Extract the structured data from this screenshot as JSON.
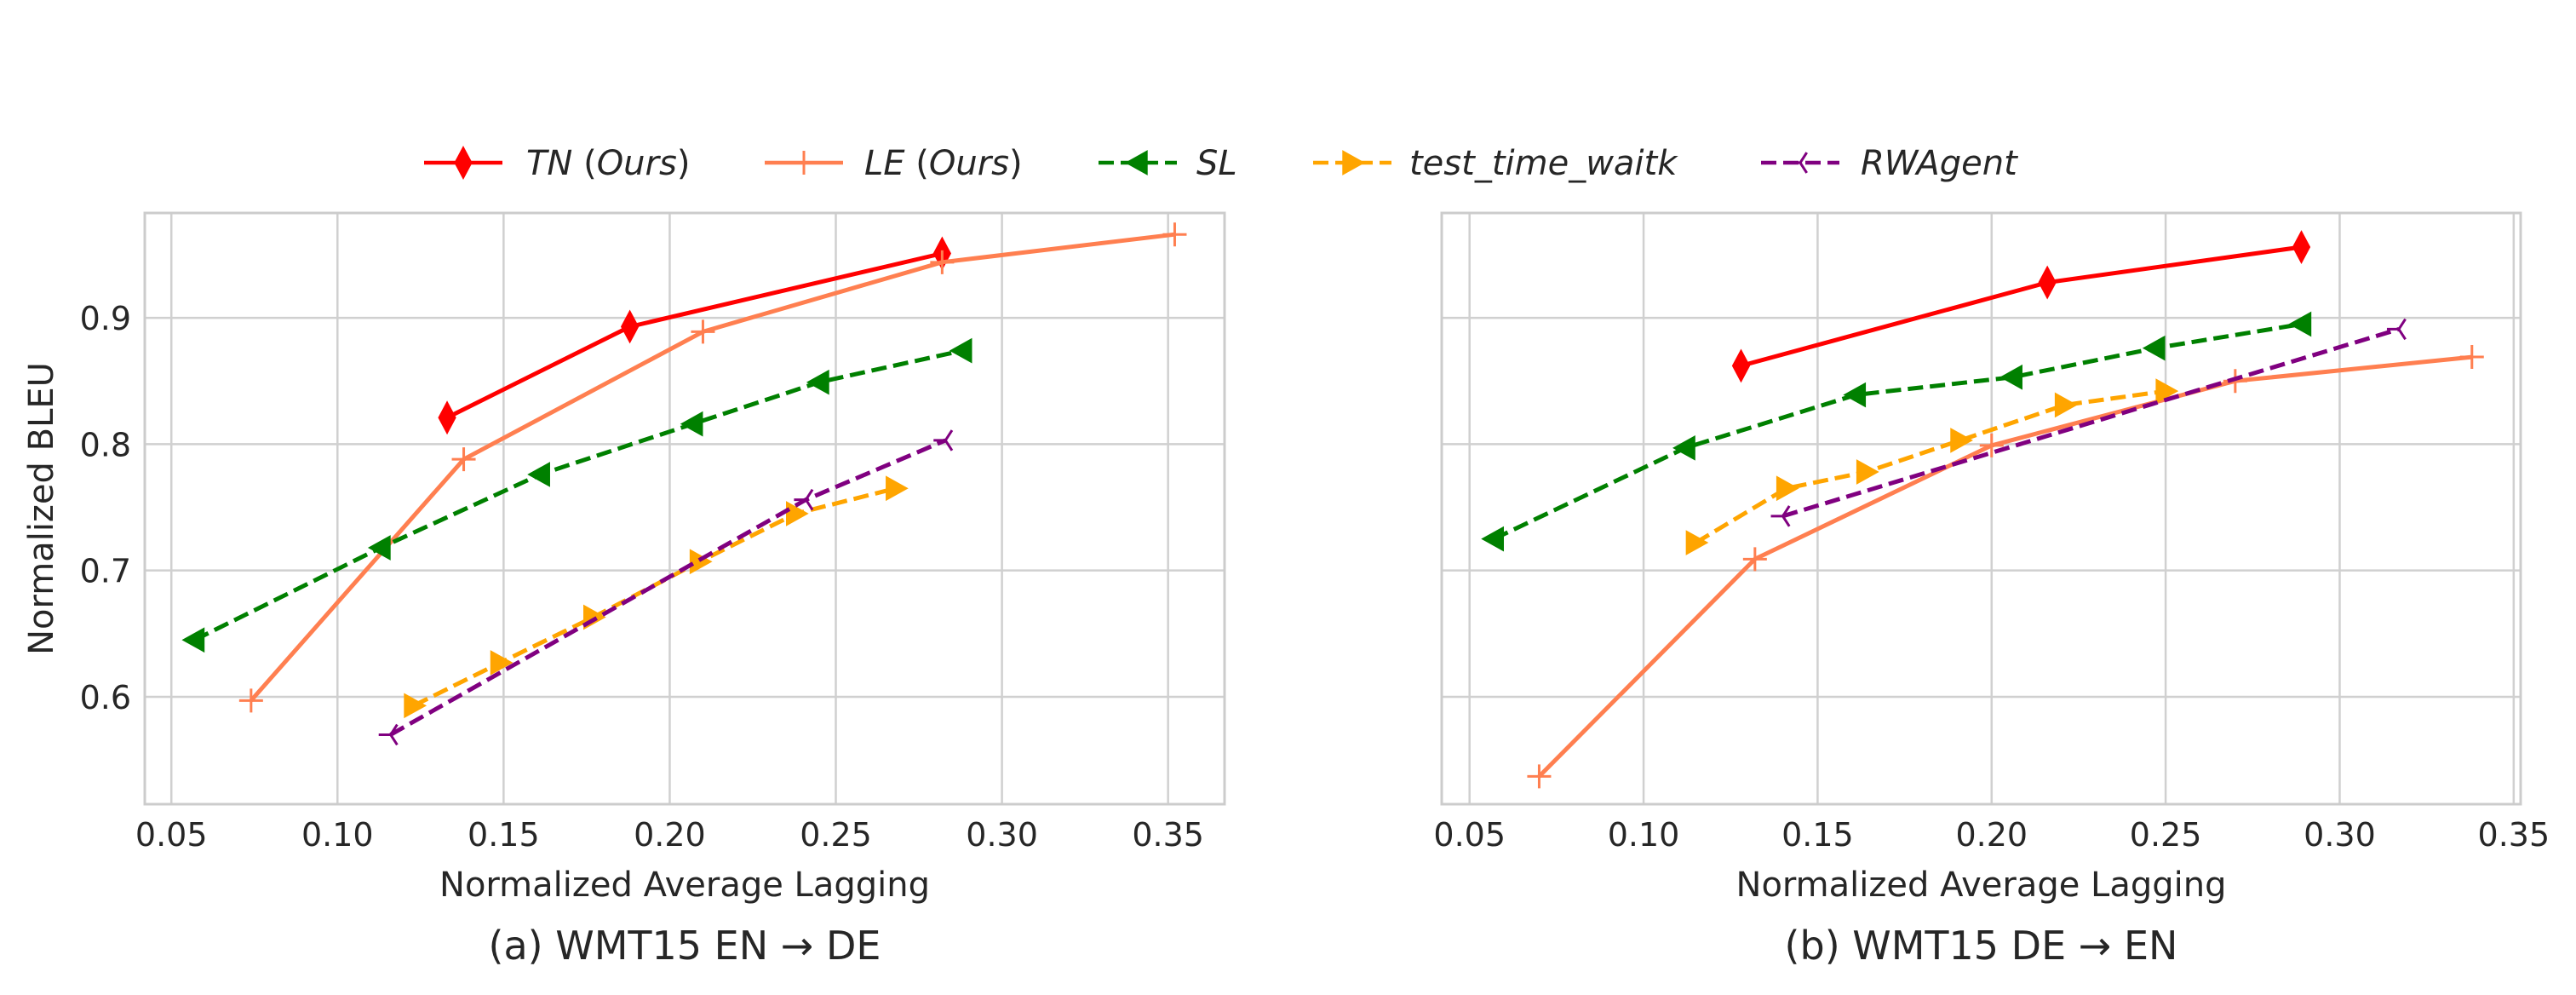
{
  "chart_data": {
    "type": "line",
    "legend": {
      "placement": "top-center",
      "entries": [
        {
          "key": "TN",
          "label": "TN",
          "suffix": "Ours"
        },
        {
          "key": "LE",
          "label": "LE",
          "suffix": "Ours"
        },
        {
          "key": "SL",
          "label": "SL",
          "suffix": ""
        },
        {
          "key": "test_time_waitk",
          "label": "test_time_waitk",
          "suffix": ""
        },
        {
          "key": "RWAgent",
          "label": "RWAgent",
          "suffix": ""
        }
      ]
    },
    "series_style": {
      "TN": {
        "color": "#ff0000",
        "dash": "solid",
        "marker": "diamond"
      },
      "LE": {
        "color": "#ff7f50",
        "dash": "solid",
        "marker": "plus"
      },
      "SL": {
        "color": "#008000",
        "dash": "dashed",
        "marker": "triangle-left"
      },
      "test_time_waitk": {
        "color": "#ffa500",
        "dash": "dashed",
        "marker": "triangle-right"
      },
      "RWAgent": {
        "color": "#800080",
        "dash": "dashed",
        "marker": "tri-left"
      }
    },
    "charts": [
      {
        "id": "a",
        "caption": "(a) WMT15 EN → DE",
        "xlabel": "Normalized Average Lagging",
        "ylabel": "Normalized BLEU",
        "xlim": [
          0.042,
          0.367
        ],
        "ylim": [
          0.515,
          0.983
        ],
        "xticks": [
          0.05,
          0.1,
          0.15,
          0.2,
          0.25,
          0.3,
          0.35
        ],
        "xtick_labels": [
          "0.05",
          "0.10",
          "0.15",
          "0.20",
          "0.25",
          "0.30",
          "0.35"
        ],
        "yticks": [
          0.6,
          0.7,
          0.8,
          0.9
        ],
        "ytick_labels": [
          "0.6",
          "0.7",
          "0.8",
          "0.9"
        ],
        "show_yticklabels": true,
        "grid": true,
        "series": [
          {
            "key": "TN",
            "name": "TN (Ours)",
            "x": [
              0.133,
              0.188,
              0.282
            ],
            "y": [
              0.821,
              0.893,
              0.951
            ]
          },
          {
            "key": "LE",
            "name": "LE (Ours)",
            "x": [
              0.074,
              0.138,
              0.21,
              0.282,
              0.352
            ],
            "y": [
              0.597,
              0.788,
              0.889,
              0.944,
              0.966
            ]
          },
          {
            "key": "SL",
            "name": "SL",
            "x": [
              0.057,
              0.113,
              0.161,
              0.207,
              0.245,
              0.288
            ],
            "y": [
              0.645,
              0.718,
              0.776,
              0.816,
              0.849,
              0.874
            ]
          },
          {
            "key": "test_time_waitk",
            "name": "test_time_waitk",
            "x": [
              0.123,
              0.149,
              0.177,
              0.209,
              0.238,
              0.268
            ],
            "y": [
              0.593,
              0.627,
              0.663,
              0.707,
              0.745,
              0.765
            ]
          },
          {
            "key": "RWAgent",
            "name": "RWAgent",
            "x": [
              0.116,
              0.241,
              0.283
            ],
            "y": [
              0.57,
              0.756,
              0.803
            ]
          }
        ]
      },
      {
        "id": "b",
        "caption": "(b) WMT15 DE → EN",
        "xlabel": "Normalized Average Lagging",
        "ylabel": "",
        "xlim": [
          0.042,
          0.352
        ],
        "ylim": [
          0.515,
          0.983
        ],
        "xticks": [
          0.05,
          0.1,
          0.15,
          0.2,
          0.25,
          0.3,
          0.35
        ],
        "xtick_labels": [
          "0.05",
          "0.10",
          "0.15",
          "0.20",
          "0.25",
          "0.30",
          "0.35"
        ],
        "yticks": [
          0.6,
          0.7,
          0.8,
          0.9
        ],
        "ytick_labels": [
          "0.6",
          "0.7",
          "0.8",
          "0.9"
        ],
        "show_yticklabels": false,
        "grid": true,
        "series": [
          {
            "key": "TN",
            "name": "TN (Ours)",
            "x": [
              0.128,
              0.216,
              0.289
            ],
            "y": [
              0.862,
              0.928,
              0.956
            ]
          },
          {
            "key": "LE",
            "name": "LE (Ours)",
            "x": [
              0.07,
              0.132,
              0.2,
              0.27,
              0.338
            ],
            "y": [
              0.537,
              0.709,
              0.799,
              0.85,
              0.869
            ]
          },
          {
            "key": "SL",
            "name": "SL",
            "x": [
              0.057,
              0.112,
              0.161,
              0.206,
              0.247,
              0.289
            ],
            "y": [
              0.725,
              0.797,
              0.839,
              0.853,
              0.876,
              0.895
            ]
          },
          {
            "key": "test_time_waitk",
            "name": "test_time_waitk",
            "x": [
              0.115,
              0.141,
              0.164,
              0.191,
              0.221,
              0.25
            ],
            "y": [
              0.722,
              0.765,
              0.778,
              0.803,
              0.831,
              0.842
            ]
          },
          {
            "key": "RWAgent",
            "name": "RWAgent",
            "x": [
              0.14,
              0.317
            ],
            "y": [
              0.743,
              0.891
            ]
          }
        ]
      }
    ]
  }
}
